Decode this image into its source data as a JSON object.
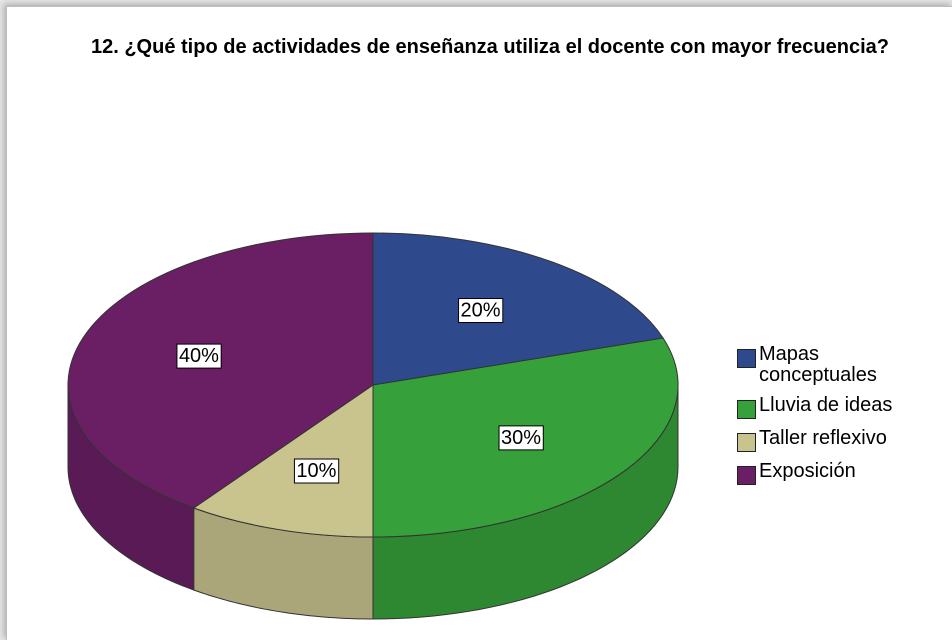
{
  "chart_data": {
    "type": "pie",
    "title": "12. ¿Qué tipo de actividades de enseñanza utiliza el docente con mayor frecuencia?",
    "categories": [
      "Mapas conceptuales",
      "Lluvia de ideas",
      "Taller reflexivo",
      "Exposición"
    ],
    "values": [
      20,
      30,
      10,
      40
    ],
    "value_labels": [
      "20%",
      "30%",
      "10%",
      "40%"
    ],
    "colors": [
      "#2f4a8c",
      "#36a03a",
      "#c9c38e",
      "#6a1f64"
    ],
    "legend": "right"
  }
}
